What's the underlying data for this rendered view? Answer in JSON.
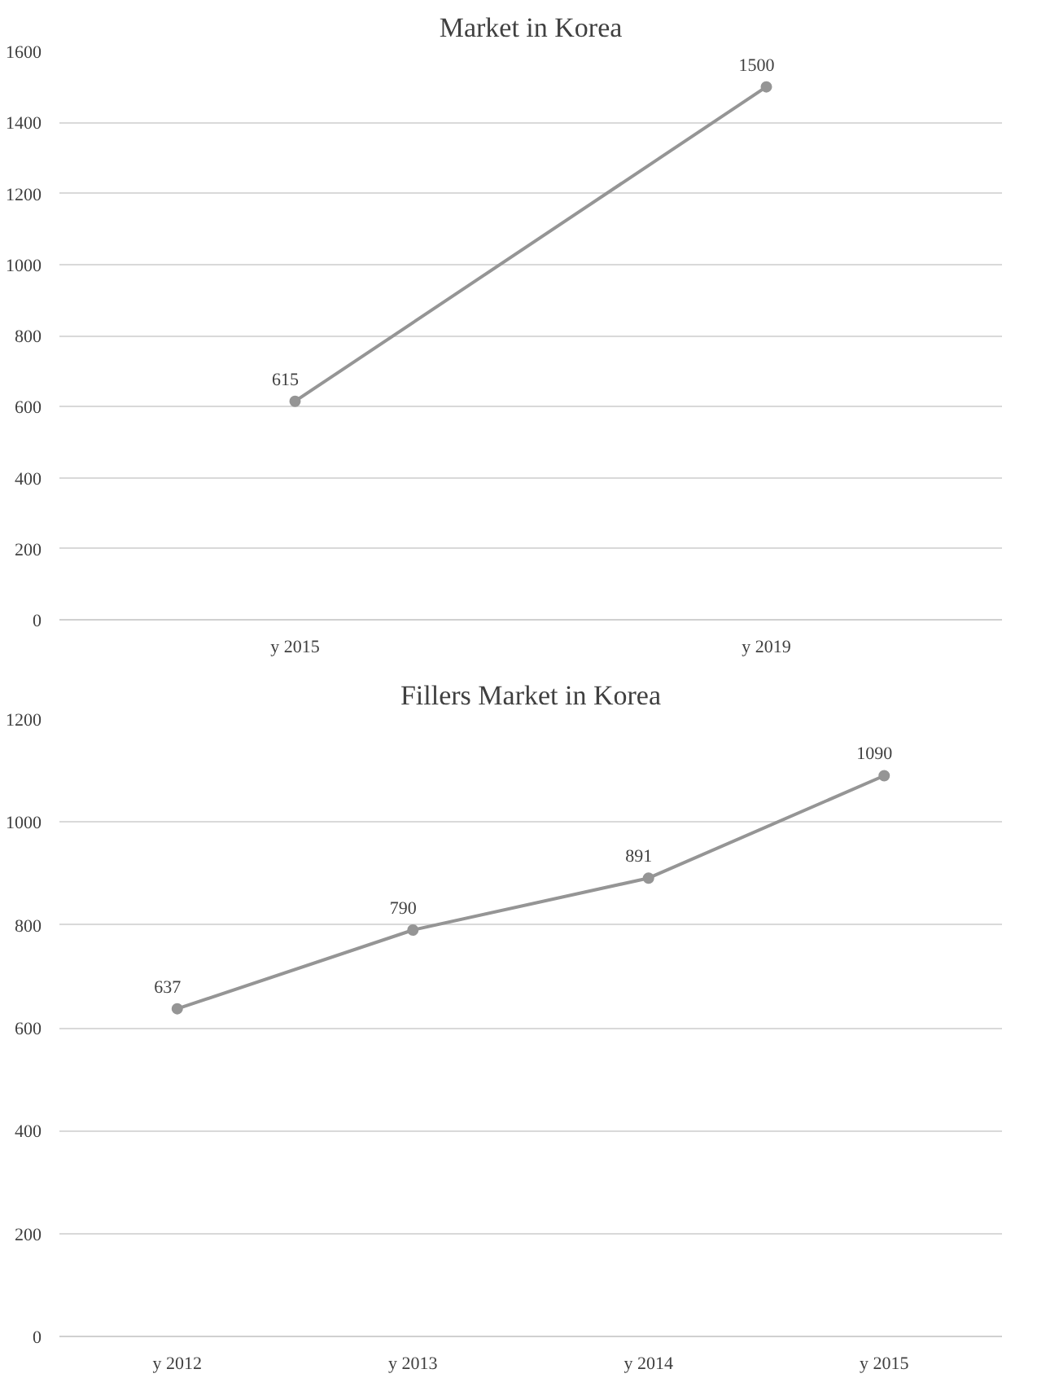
{
  "chart_data": [
    {
      "type": "line",
      "title": "Market in Korea",
      "categories": [
        "y 2015",
        "y 2019"
      ],
      "series": [
        {
          "color": "#959595",
          "values": [
            615,
            1500
          ]
        }
      ],
      "ylim": [
        0,
        1600
      ],
      "yticks": [
        0,
        200,
        400,
        600,
        800,
        1000,
        1200,
        1400,
        1600
      ],
      "grid": "y",
      "marker": "circle",
      "data_labels": true
    },
    {
      "type": "line",
      "title": "Fillers Market in Korea",
      "categories": [
        "y 2012",
        "y 2013",
        "y 2014",
        "y 2015"
      ],
      "series": [
        {
          "color": "#959595",
          "values": [
            637,
            790,
            891,
            1090
          ]
        }
      ],
      "ylim": [
        0,
        1200
      ],
      "yticks": [
        0,
        200,
        400,
        600,
        800,
        1000,
        1200
      ],
      "grid": "y",
      "marker": "circle",
      "data_labels": true
    }
  ]
}
